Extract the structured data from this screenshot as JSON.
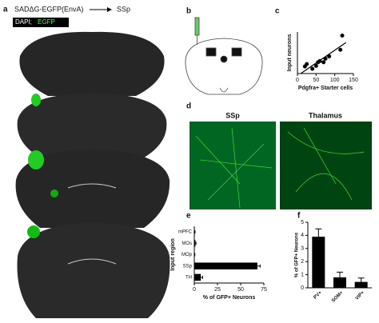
{
  "panel_labels": {
    "a": "a",
    "b": "b",
    "c": "c",
    "d": "d",
    "e": "e",
    "f": "f"
  },
  "header": {
    "virus": "SADΔG-EGFP(EnvA)",
    "target": "SSp",
    "dapi": "DAPI;",
    "egfp": "EGFP"
  },
  "images": {
    "left": "SSp",
    "right": "Thalamus"
  },
  "chart_data": [
    {
      "type": "scatter",
      "x_label": "Pdgfra+ Starter cells",
      "y_label": "Input neurons",
      "x": [
        20,
        25,
        40,
        50,
        55,
        60,
        70,
        75,
        85,
        115,
        120
      ],
      "y": [
        600,
        800,
        400,
        650,
        950,
        1050,
        950,
        1250,
        1450,
        2000,
        3200
      ],
      "xlim": [
        0,
        150
      ],
      "xticks": [
        0,
        50,
        100,
        150
      ],
      "ylim": [
        0,
        3500
      ],
      "color": "#000000"
    },
    {
      "type": "barh",
      "x_label": "% of GFP+ Neurons",
      "y_label": "Input region",
      "categories": [
        "mPFC",
        "MOs",
        "MOp",
        "SSp",
        "TH"
      ],
      "values": [
        0.5,
        1.2,
        0.4,
        68,
        7
      ],
      "errors": [
        0.3,
        0.6,
        0.2,
        3,
        2
      ],
      "xlim": [
        0,
        75
      ],
      "xticks": [
        0,
        25,
        50,
        75
      ],
      "color": "#000000"
    },
    {
      "type": "bar",
      "y_label": "% of GFP+ Neurons",
      "categories": [
        "PV+",
        "SOM+",
        "VIP+"
      ],
      "values": [
        3.9,
        0.8,
        0.45
      ],
      "errors": [
        0.6,
        0.4,
        0.3
      ],
      "ylim": [
        0,
        5
      ],
      "yticks": [
        0,
        1,
        2,
        3,
        4,
        5
      ],
      "color": "#000000"
    }
  ]
}
